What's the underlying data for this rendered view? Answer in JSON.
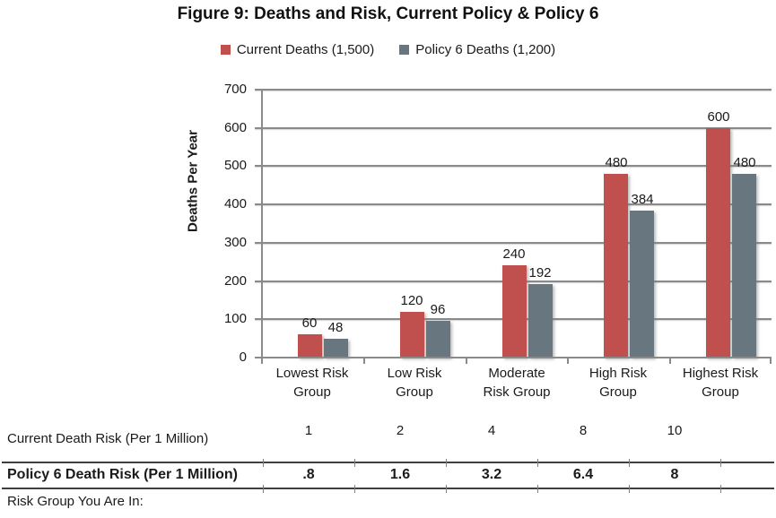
{
  "title": "Figure 9: Deaths and Risk, Current Policy & Policy 6",
  "legend": [
    {
      "label": "Current Deaths (1,500)",
      "color": "#C0504D",
      "icon": "red-square-swatch"
    },
    {
      "label": "Policy 6 Deaths (1,200)",
      "color": "#68767F",
      "icon": "gray-square-swatch"
    }
  ],
  "chart_data": {
    "type": "bar",
    "title": "Figure 9: Deaths and Risk, Current Policy & Policy 6",
    "categories": [
      "Lowest Risk Group",
      "Low Risk Group",
      "Moderate Risk Group",
      "High Risk Group",
      "Highest Risk Group"
    ],
    "category_lines": [
      [
        "Lowest Risk",
        "Group"
      ],
      [
        "Low Risk",
        "Group"
      ],
      [
        "Moderate",
        "Risk Group"
      ],
      [
        "High Risk",
        "Group"
      ],
      [
        "Highest Risk",
        "Group"
      ]
    ],
    "series": [
      {
        "name": "Current Deaths (1,500)",
        "color": "#C0504D",
        "values": [
          60,
          120,
          240,
          480,
          600
        ]
      },
      {
        "name": "Policy 6 Deaths (1,200)",
        "color": "#68767F",
        "values": [
          48,
          96,
          192,
          384,
          480
        ]
      }
    ],
    "xlabel": "",
    "ylabel": "Deaths Per Year",
    "ylim": [
      0,
      700
    ],
    "ytick_step": 100,
    "grid": true,
    "legend_position": "top",
    "data_labels": true
  },
  "table": {
    "rows": [
      {
        "label": "Current Death Risk (Per 1 Million)",
        "values": [
          "1",
          "2",
          "4",
          "8",
          "10"
        ],
        "bold": false,
        "bordered": false
      },
      {
        "label": "Policy 6 Death Risk (Per 1 Million)",
        "values": [
          ".8",
          "1.6",
          "3.2",
          "6.4",
          "8"
        ],
        "bold": true,
        "bordered": true
      },
      {
        "label": "Risk Group You Are In:",
        "values": [
          "",
          "",
          "",
          "",
          ""
        ],
        "bold": false,
        "bordered": false
      }
    ]
  }
}
